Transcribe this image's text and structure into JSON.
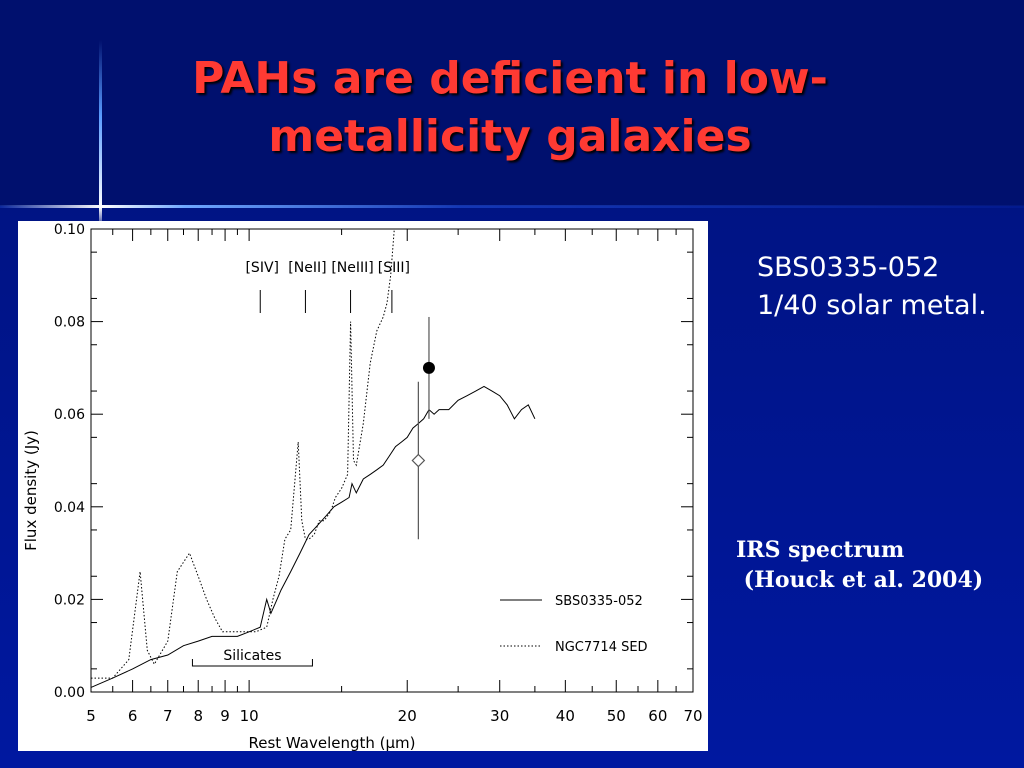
{
  "slide": {
    "title_line1": "PAHs are deficient in low-",
    "title_line2": "metallicity galaxies",
    "object_name": "SBS0335-052",
    "metallicity": "1/40 solar metal.",
    "source_line1": "IRS spectrum",
    "source_line2": " (Houck et al. 2004)",
    "colors": {
      "title": "#ff3a33",
      "background": "#0016a0",
      "text": "#ffffff"
    }
  },
  "chart_data": {
    "type": "line",
    "xlabel": "Rest Wavelength (μm)",
    "ylabel": "Flux density (Jy)",
    "xscale": "log",
    "xlim": [
      5,
      70
    ],
    "ylim": [
      0.0,
      0.1
    ],
    "xticks": [
      5,
      6,
      7,
      8,
      9,
      10,
      20,
      30,
      40,
      50,
      60,
      70
    ],
    "xtick_labels": [
      "5",
      "6",
      "7",
      "8",
      "9",
      "10",
      "20",
      "30",
      "40",
      "50",
      "60",
      "70"
    ],
    "yticks": [
      0.0,
      0.02,
      0.04,
      0.06,
      0.08,
      0.1
    ],
    "ytick_labels": [
      "0.00",
      "0.02",
      "0.04",
      "0.06",
      "0.08",
      "0.10"
    ],
    "legend_position": "bottom-right",
    "series": [
      {
        "name": "SBS0335-052",
        "style": "solid",
        "x": [
          5.0,
          5.5,
          6.0,
          6.5,
          7.0,
          7.5,
          8.0,
          8.5,
          9.0,
          9.5,
          10.0,
          10.5,
          10.8,
          11.0,
          11.3,
          11.5,
          12.0,
          12.5,
          13.0,
          13.5,
          14.0,
          14.5,
          15.0,
          15.5,
          15.7,
          16.0,
          16.5,
          17.0,
          17.5,
          18.0,
          18.5,
          19.0,
          19.5,
          20.0,
          20.5,
          21.0,
          21.5,
          22.0,
          22.5,
          23.0,
          24.0,
          25.0,
          26.0,
          27.0,
          28.0,
          29.0,
          30.0,
          31.0,
          32.0,
          33.0,
          34.0,
          35.0
        ],
        "y": [
          0.001,
          0.003,
          0.005,
          0.007,
          0.008,
          0.01,
          0.011,
          0.012,
          0.012,
          0.012,
          0.013,
          0.014,
          0.02,
          0.017,
          0.02,
          0.022,
          0.026,
          0.03,
          0.034,
          0.036,
          0.038,
          0.04,
          0.041,
          0.042,
          0.045,
          0.043,
          0.046,
          0.047,
          0.048,
          0.049,
          0.051,
          0.053,
          0.054,
          0.055,
          0.057,
          0.058,
          0.059,
          0.061,
          0.06,
          0.061,
          0.061,
          0.063,
          0.064,
          0.065,
          0.066,
          0.065,
          0.064,
          0.062,
          0.059,
          0.061,
          0.062,
          0.059
        ]
      },
      {
        "name": "NGC7714 SED",
        "style": "dotted",
        "x": [
          5.0,
          5.5,
          5.9,
          6.2,
          6.4,
          6.6,
          7.0,
          7.3,
          7.7,
          8.0,
          8.3,
          8.6,
          8.9,
          9.3,
          9.8,
          10.3,
          10.8,
          11.1,
          11.4,
          11.7,
          12.0,
          12.4,
          12.6,
          12.8,
          13.0,
          13.3,
          13.6,
          13.9,
          14.3,
          14.6,
          15.0,
          15.4,
          15.6,
          15.8,
          16.0,
          16.5,
          17.0,
          17.5,
          18.0,
          18.3,
          18.6,
          18.9,
          19.2
        ],
        "y": [
          0.003,
          0.003,
          0.007,
          0.026,
          0.009,
          0.006,
          0.011,
          0.026,
          0.03,
          0.025,
          0.02,
          0.016,
          0.013,
          0.013,
          0.013,
          0.013,
          0.014,
          0.02,
          0.025,
          0.033,
          0.035,
          0.054,
          0.037,
          0.033,
          0.033,
          0.034,
          0.037,
          0.037,
          0.039,
          0.042,
          0.044,
          0.047,
          0.08,
          0.05,
          0.049,
          0.058,
          0.071,
          0.078,
          0.081,
          0.084,
          0.09,
          0.1,
          0.104
        ]
      }
    ],
    "points": [
      {
        "label": "",
        "marker": "filled-circle",
        "x": 22.0,
        "y": 0.07,
        "yerr": 0.011
      },
      {
        "label": "",
        "marker": "open-diamond",
        "x": 21.0,
        "y": 0.05,
        "yerr": 0.017
      }
    ],
    "line_labels": [
      {
        "text": "[SIV]",
        "x": 10.5
      },
      {
        "text": "[NeII]",
        "x": 12.8
      },
      {
        "text": "[NeIII]",
        "x": 15.6
      },
      {
        "text": "[SIII]",
        "x": 18.7
      }
    ],
    "annotation": {
      "text": "Silicates",
      "x_start": 7.8,
      "x_end": 13.2
    }
  }
}
